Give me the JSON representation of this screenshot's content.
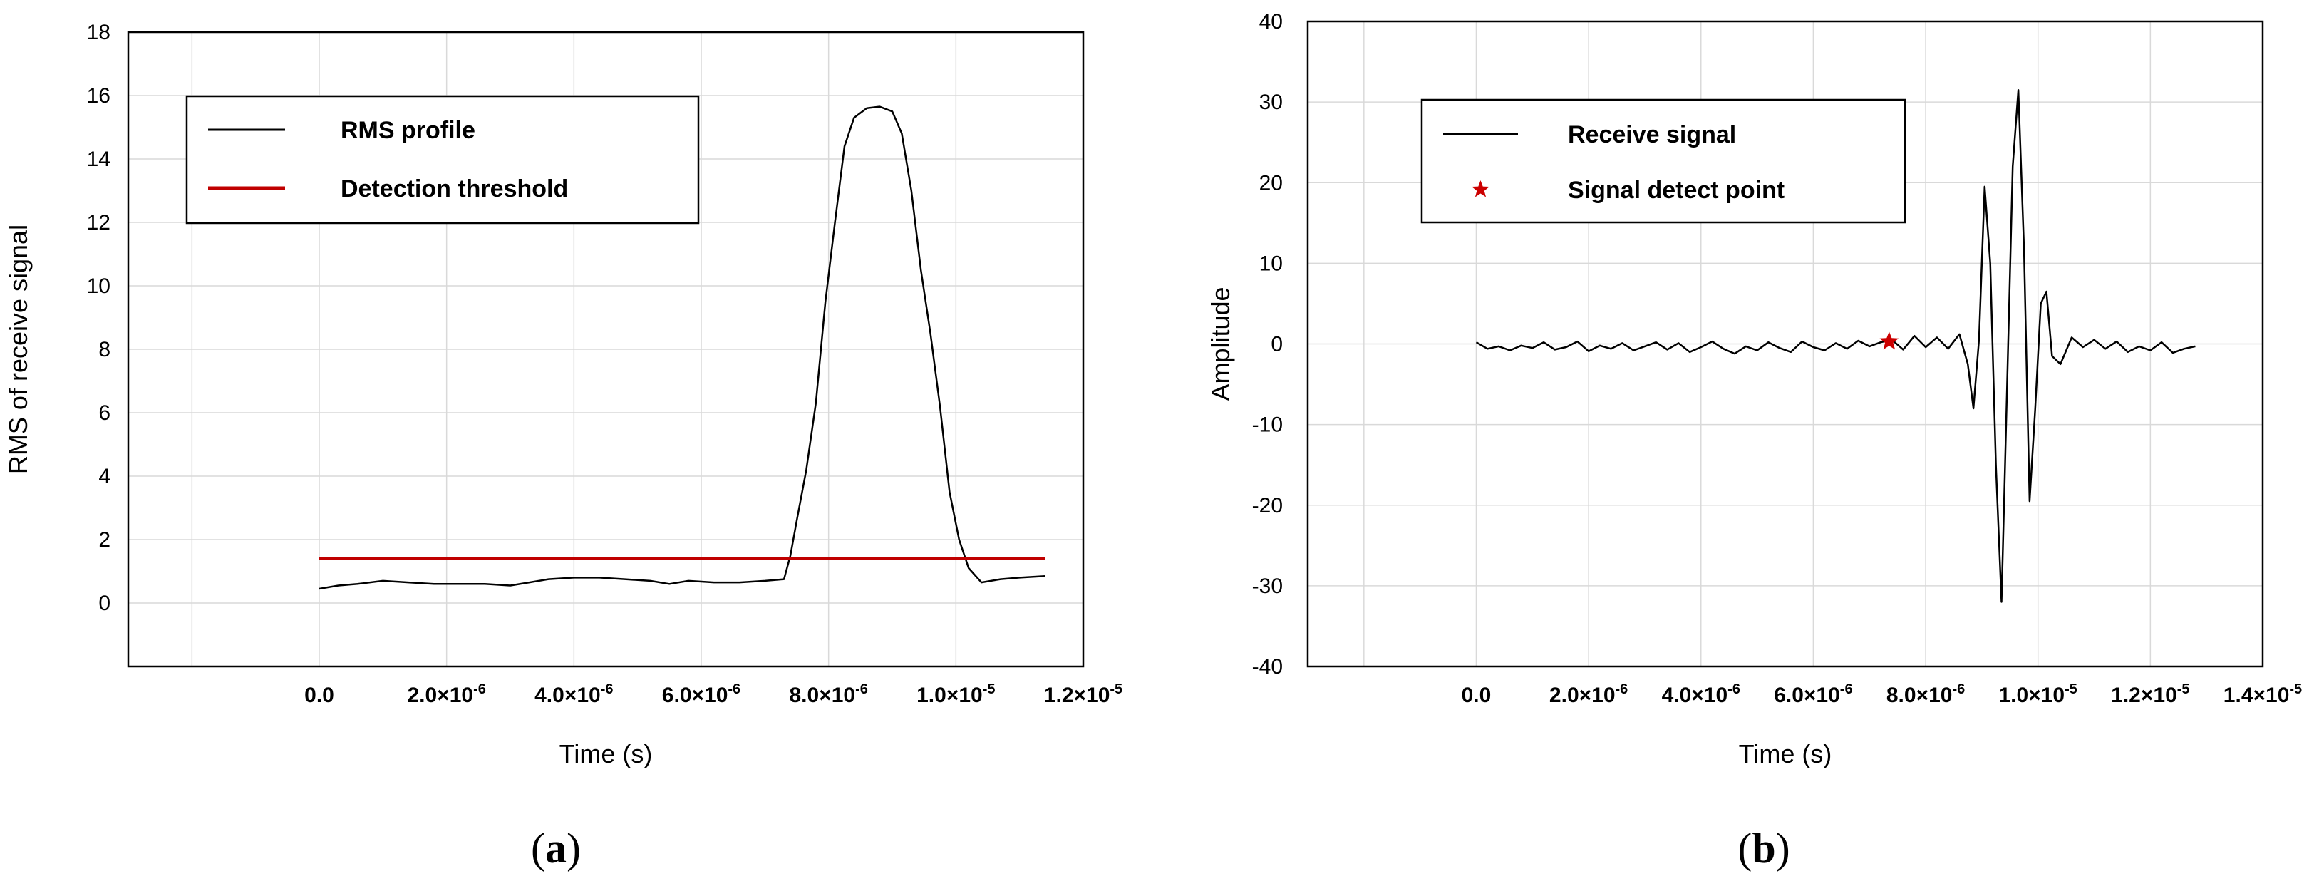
{
  "chart_data": [
    {
      "panel": "a",
      "type": "line",
      "xlabel": "Time (s)",
      "ylabel": "RMS of receive signal",
      "xlim": [
        -3e-06,
        1.2e-05
      ],
      "ylim": [
        -2,
        18
      ],
      "grid": true,
      "legend_position": "top-left",
      "x_ticks": [
        {
          "value": 0.0,
          "mant": "0.0",
          "exp": ""
        },
        {
          "value": 2e-06,
          "mant": "2.0×10",
          "exp": "-6"
        },
        {
          "value": 4e-06,
          "mant": "4.0×10",
          "exp": "-6"
        },
        {
          "value": 6e-06,
          "mant": "6.0×10",
          "exp": "-6"
        },
        {
          "value": 8e-06,
          "mant": "8.0×10",
          "exp": "-6"
        },
        {
          "value": 1e-05,
          "mant": "1.0×10",
          "exp": "-5"
        },
        {
          "value": 1.2e-05,
          "mant": "1.2×10",
          "exp": "-5"
        }
      ],
      "y_ticks": [
        0,
        2,
        4,
        6,
        8,
        10,
        12,
        14,
        16,
        18
      ],
      "series": [
        {
          "name": "RMS profile",
          "color": "#000000",
          "x": [
            0.0,
            3e-07,
            6e-07,
            1e-06,
            1.4e-06,
            1.8e-06,
            2.2e-06,
            2.6e-06,
            3e-06,
            3.3e-06,
            3.6e-06,
            4e-06,
            4.4e-06,
            4.8e-06,
            5.2e-06,
            5.5e-06,
            5.8e-06,
            6.2e-06,
            6.6e-06,
            7e-06,
            7.3e-06,
            7.4e-06,
            7.5e-06,
            7.65e-06,
            7.8e-06,
            7.95e-06,
            8.1e-06,
            8.25e-06,
            8.4e-06,
            8.6e-06,
            8.8e-06,
            9e-06,
            9.15e-06,
            9.3e-06,
            9.45e-06,
            9.6e-06,
            9.75e-06,
            9.9e-06,
            1.005e-05,
            1.02e-05,
            1.04e-05,
            1.07e-05,
            1.1e-05,
            1.14e-05
          ],
          "values": [
            0.45,
            0.55,
            0.6,
            0.7,
            0.65,
            0.6,
            0.6,
            0.6,
            0.55,
            0.65,
            0.75,
            0.8,
            0.8,
            0.75,
            0.7,
            0.6,
            0.7,
            0.65,
            0.65,
            0.7,
            0.75,
            1.5,
            2.6,
            4.2,
            6.3,
            9.5,
            12.0,
            14.4,
            15.3,
            15.6,
            15.65,
            15.5,
            14.8,
            13.0,
            10.5,
            8.5,
            6.2,
            3.5,
            2.0,
            1.1,
            0.65,
            0.75,
            0.8,
            0.85
          ]
        },
        {
          "name": "Detection threshold",
          "color": "#c00000",
          "x": [
            0.0,
            1.14e-05
          ],
          "values": [
            1.4,
            1.4
          ]
        }
      ]
    },
    {
      "panel": "b",
      "type": "line",
      "xlabel": "Time (s)",
      "ylabel": "Amplitude",
      "xlim": [
        -3e-06,
        1.4e-05
      ],
      "ylim": [
        -40,
        40
      ],
      "grid": true,
      "legend_position": "top-left",
      "x_ticks": [
        {
          "value": 0.0,
          "mant": "0.0",
          "exp": ""
        },
        {
          "value": 2e-06,
          "mant": "2.0×10",
          "exp": "-6"
        },
        {
          "value": 4e-06,
          "mant": "4.0×10",
          "exp": "-6"
        },
        {
          "value": 6e-06,
          "mant": "6.0×10",
          "exp": "-6"
        },
        {
          "value": 8e-06,
          "mant": "8.0×10",
          "exp": "-6"
        },
        {
          "value": 1e-05,
          "mant": "1.0×10",
          "exp": "-5"
        },
        {
          "value": 1.2e-05,
          "mant": "1.2×10",
          "exp": "-5"
        },
        {
          "value": 1.4e-05,
          "mant": "1.4×10",
          "exp": "-5"
        }
      ],
      "y_ticks": [
        -40,
        -30,
        -20,
        -10,
        0,
        10,
        20,
        30,
        40
      ],
      "series": [
        {
          "name": "Receive signal",
          "color": "#000000",
          "x": [
            0.0,
            2e-07,
            4e-07,
            6e-07,
            8e-07,
            1e-06,
            1.2e-06,
            1.4e-06,
            1.6e-06,
            1.8e-06,
            2e-06,
            2.2e-06,
            2.4e-06,
            2.6e-06,
            2.8e-06,
            3e-06,
            3.2e-06,
            3.4e-06,
            3.6e-06,
            3.8e-06,
            4e-06,
            4.2e-06,
            4.4e-06,
            4.6e-06,
            4.8e-06,
            5e-06,
            5.2e-06,
            5.4e-06,
            5.6e-06,
            5.8e-06,
            6e-06,
            6.2e-06,
            6.4e-06,
            6.6e-06,
            6.8e-06,
            7e-06,
            7.2e-06,
            7.4e-06,
            7.6e-06,
            7.8e-06,
            8e-06,
            8.2e-06,
            8.4e-06,
            8.6e-06,
            8.75e-06,
            8.85e-06,
            8.95e-06,
            9.05e-06,
            9.15e-06,
            9.25e-06,
            9.35e-06,
            9.45e-06,
            9.55e-06,
            9.65e-06,
            9.75e-06,
            9.85e-06,
            9.95e-06,
            1.005e-05,
            1.015e-05,
            1.025e-05,
            1.04e-05,
            1.06e-05,
            1.08e-05,
            1.1e-05,
            1.12e-05,
            1.14e-05,
            1.16e-05,
            1.18e-05,
            1.2e-05,
            1.22e-05,
            1.24e-05,
            1.26e-05,
            1.28e-05
          ],
          "values": [
            0.2,
            -0.6,
            -0.3,
            -0.8,
            -0.2,
            -0.5,
            0.2,
            -0.7,
            -0.4,
            0.3,
            -0.9,
            -0.2,
            -0.6,
            0.1,
            -0.8,
            -0.3,
            0.2,
            -0.7,
            0.1,
            -1.0,
            -0.4,
            0.3,
            -0.6,
            -1.2,
            -0.3,
            -0.8,
            0.2,
            -0.5,
            -1.0,
            0.3,
            -0.4,
            -0.8,
            0.1,
            -0.6,
            0.4,
            -0.3,
            0.2,
            0.5,
            -0.7,
            1.0,
            -0.4,
            0.8,
            -0.6,
            1.2,
            -2.5,
            -8.0,
            0.5,
            19.5,
            10.0,
            -15.0,
            -32.0,
            -5.0,
            22.0,
            31.5,
            12.0,
            -19.5,
            -8.0,
            5.0,
            6.5,
            -1.5,
            -2.5,
            0.8,
            -0.4,
            0.5,
            -0.6,
            0.3,
            -1.0,
            -0.3,
            -0.8,
            0.2,
            -1.1,
            -0.6,
            -0.3
          ]
        },
        {
          "name": "Signal detect point",
          "color": "#cc0000",
          "marker": "star",
          "x": [
            7.35e-06
          ],
          "values": [
            0.3
          ]
        }
      ]
    }
  ],
  "panel_labels": {
    "a": {
      "open": "(",
      "letter": "a",
      "close": ")"
    },
    "b": {
      "open": "(",
      "letter": "b",
      "close": ")"
    }
  }
}
